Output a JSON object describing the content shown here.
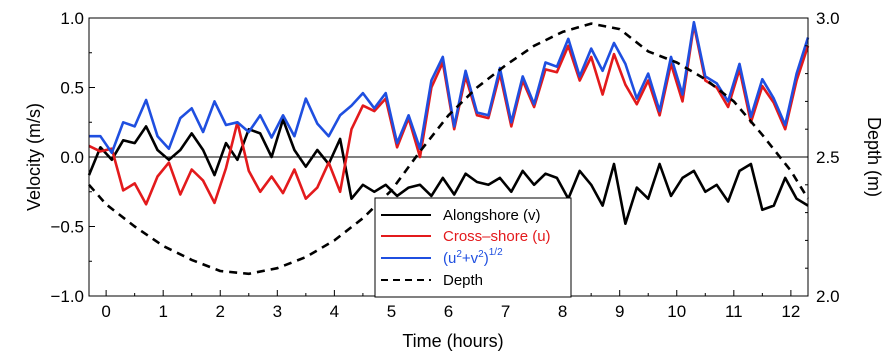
{
  "chart_data": {
    "type": "line",
    "xlabel": "Time (hours)",
    "ylabel_left": "Velocity (m/s)",
    "ylabel_right": "Depth (m)",
    "xlim": [
      -0.3,
      12.3
    ],
    "ylim_left": [
      -1.0,
      1.0
    ],
    "ylim_right": [
      2.0,
      3.0
    ],
    "x_ticks": [
      0,
      1,
      2,
      3,
      4,
      5,
      6,
      7,
      8,
      9,
      10,
      11,
      12
    ],
    "y_ticks_left": [
      -1.0,
      -0.5,
      0.0,
      0.5,
      1.0
    ],
    "y_ticks_left_labels": [
      "−1.0",
      "−0.5",
      "0.0",
      "0.5",
      "1.0"
    ],
    "y_ticks_right": [
      2.0,
      2.5,
      3.0
    ],
    "y_ticks_right_labels": [
      "2.0",
      "2.5",
      "3.0"
    ],
    "zero_line": true,
    "legend_position": "bottom-center",
    "series": [
      {
        "name": "Alongshore (v)",
        "axis": "left",
        "color": "#000000",
        "style": "solid",
        "x": [
          -0.3,
          -0.1,
          0.1,
          0.3,
          0.5,
          0.7,
          0.9,
          1.1,
          1.3,
          1.5,
          1.7,
          1.9,
          2.1,
          2.3,
          2.5,
          2.7,
          2.9,
          3.1,
          3.3,
          3.5,
          3.7,
          3.9,
          4.1,
          4.3,
          4.5,
          4.7,
          4.9,
          5.1,
          5.3,
          5.5,
          5.7,
          5.9,
          6.1,
          6.3,
          6.5,
          6.7,
          6.9,
          7.1,
          7.3,
          7.5,
          7.7,
          7.9,
          8.1,
          8.3,
          8.5,
          8.7,
          8.9,
          9.1,
          9.3,
          9.5,
          9.7,
          9.9,
          10.1,
          10.3,
          10.5,
          10.7,
          10.9,
          11.1,
          11.3,
          11.5,
          11.7,
          11.9,
          12.1,
          12.3
        ],
        "values": [
          -0.13,
          0.07,
          -0.02,
          0.12,
          0.1,
          0.22,
          0.05,
          -0.02,
          0.05,
          0.17,
          0.05,
          -0.13,
          0.1,
          -0.02,
          0.2,
          0.17,
          0.0,
          0.27,
          0.05,
          -0.07,
          0.05,
          -0.05,
          0.13,
          -0.3,
          -0.2,
          -0.25,
          -0.2,
          -0.28,
          -0.22,
          -0.2,
          -0.28,
          -0.15,
          -0.27,
          -0.12,
          -0.18,
          -0.2,
          -0.15,
          -0.25,
          -0.1,
          -0.2,
          -0.12,
          -0.15,
          -0.3,
          -0.1,
          -0.2,
          -0.35,
          -0.05,
          -0.48,
          -0.22,
          -0.3,
          -0.05,
          -0.28,
          -0.15,
          -0.1,
          -0.25,
          -0.2,
          -0.32,
          -0.1,
          -0.05,
          -0.38,
          -0.35,
          -0.15,
          -0.3,
          -0.35
        ]
      },
      {
        "name": "Cross–shore (u)",
        "axis": "left",
        "color": "#e31a1c",
        "style": "solid",
        "x": [
          -0.3,
          -0.1,
          0.1,
          0.3,
          0.5,
          0.7,
          0.9,
          1.1,
          1.3,
          1.5,
          1.7,
          1.9,
          2.1,
          2.3,
          2.5,
          2.7,
          2.9,
          3.1,
          3.3,
          3.5,
          3.7,
          3.9,
          4.1,
          4.3,
          4.5,
          4.7,
          4.9,
          5.1,
          5.3,
          5.5,
          5.7,
          5.9,
          6.1,
          6.3,
          6.5,
          6.7,
          6.9,
          7.1,
          7.3,
          7.5,
          7.7,
          7.9,
          8.1,
          8.3,
          8.5,
          8.7,
          8.9,
          9.1,
          9.3,
          9.5,
          9.7,
          9.9,
          10.1,
          10.3,
          10.5,
          10.7,
          10.9,
          11.1,
          11.3,
          11.5,
          11.7,
          11.9,
          12.1,
          12.3
        ],
        "values": [
          0.08,
          0.04,
          0.06,
          -0.24,
          -0.19,
          -0.34,
          -0.14,
          -0.04,
          -0.27,
          -0.09,
          -0.17,
          -0.33,
          -0.08,
          0.25,
          -0.1,
          -0.25,
          -0.14,
          -0.26,
          -0.09,
          -0.3,
          -0.22,
          -0.04,
          -0.25,
          0.2,
          0.37,
          0.33,
          0.42,
          0.07,
          0.28,
          0.0,
          0.5,
          0.68,
          0.2,
          0.58,
          0.3,
          0.28,
          0.6,
          0.22,
          0.55,
          0.36,
          0.63,
          0.61,
          0.8,
          0.55,
          0.72,
          0.45,
          0.74,
          0.52,
          0.38,
          0.55,
          0.3,
          0.67,
          0.4,
          0.95,
          0.55,
          0.5,
          0.36,
          0.63,
          0.25,
          0.51,
          0.39,
          0.2,
          0.55,
          0.8
        ]
      },
      {
        "name": "(u²+v²)^1/2",
        "axis": "left",
        "color": "#1f4fe0",
        "style": "solid",
        "x": [
          -0.3,
          -0.1,
          0.1,
          0.3,
          0.5,
          0.7,
          0.9,
          1.1,
          1.3,
          1.5,
          1.7,
          1.9,
          2.1,
          2.3,
          2.5,
          2.7,
          2.9,
          3.1,
          3.3,
          3.5,
          3.7,
          3.9,
          4.1,
          4.3,
          4.5,
          4.7,
          4.9,
          5.1,
          5.3,
          5.5,
          5.7,
          5.9,
          6.1,
          6.3,
          6.5,
          6.7,
          6.9,
          7.1,
          7.3,
          7.5,
          7.7,
          7.9,
          8.1,
          8.3,
          8.5,
          8.7,
          8.9,
          9.1,
          9.3,
          9.5,
          9.7,
          9.9,
          10.1,
          10.3,
          10.5,
          10.7,
          10.9,
          11.1,
          11.3,
          11.5,
          11.7,
          11.9,
          12.1,
          12.3
        ],
        "values": [
          0.15,
          0.15,
          0.03,
          0.25,
          0.22,
          0.41,
          0.15,
          0.06,
          0.28,
          0.35,
          0.18,
          0.4,
          0.23,
          0.25,
          0.18,
          0.3,
          0.14,
          0.3,
          0.15,
          0.42,
          0.24,
          0.15,
          0.3,
          0.37,
          0.46,
          0.35,
          0.46,
          0.1,
          0.3,
          0.06,
          0.55,
          0.72,
          0.22,
          0.62,
          0.32,
          0.3,
          0.64,
          0.25,
          0.58,
          0.38,
          0.68,
          0.65,
          0.85,
          0.58,
          0.78,
          0.62,
          0.82,
          0.67,
          0.42,
          0.6,
          0.33,
          0.72,
          0.45,
          0.97,
          0.58,
          0.53,
          0.4,
          0.67,
          0.29,
          0.56,
          0.42,
          0.23,
          0.6,
          0.86
        ]
      },
      {
        "name": "Depth",
        "axis": "right",
        "color": "#000000",
        "style": "dashed",
        "x": [
          -0.3,
          0.0,
          0.5,
          1.0,
          1.5,
          2.0,
          2.5,
          3.0,
          3.5,
          4.0,
          4.5,
          5.0,
          5.5,
          6.0,
          6.5,
          7.0,
          7.5,
          8.0,
          8.5,
          9.0,
          9.5,
          10.0,
          10.5,
          11.0,
          11.5,
          12.0,
          12.3
        ],
        "values": [
          2.4,
          2.33,
          2.25,
          2.18,
          2.13,
          2.09,
          2.08,
          2.1,
          2.14,
          2.2,
          2.28,
          2.38,
          2.52,
          2.65,
          2.75,
          2.83,
          2.9,
          2.95,
          2.98,
          2.96,
          2.88,
          2.84,
          2.78,
          2.7,
          2.58,
          2.45,
          2.35
        ]
      }
    ]
  },
  "legend": {
    "items": [
      {
        "label": "Alongshore (v)",
        "color": "#000000",
        "style": "solid"
      },
      {
        "label": "Cross–shore (u)",
        "color": "#e31a1c",
        "style": "solid"
      },
      {
        "label_base": "(u",
        "sup1": "2",
        "mid": "+v",
        "sup2": "2",
        "end": ")",
        "sup3": "1/2",
        "color": "#1f4fe0",
        "style": "solid"
      },
      {
        "label": "Depth",
        "color": "#000000",
        "style": "dashed"
      }
    ]
  }
}
